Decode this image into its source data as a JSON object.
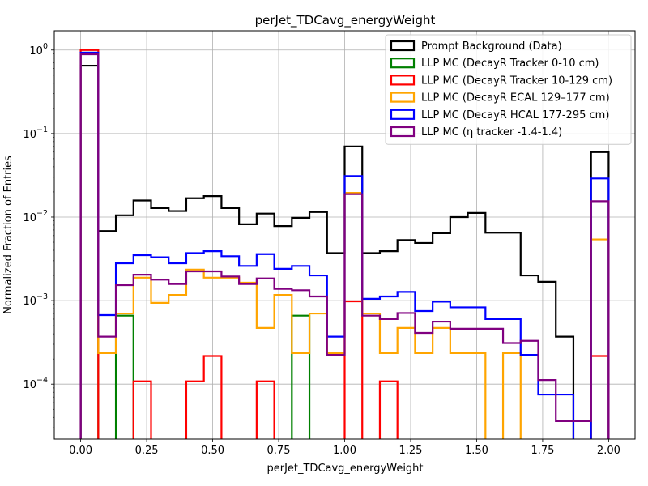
{
  "chart_data": {
    "type": "histogram",
    "title": "perJet_TDCavg_energyWeight",
    "xlabel": "perJet_TDCavg_energyWeight",
    "ylabel": "Normalized Fraction of Entries",
    "xlim": [
      -0.1,
      2.1
    ],
    "ylim": [
      2.2e-05,
      1.7
    ],
    "yscale": "log",
    "grid": true,
    "legend_position": "top-right",
    "x_ticks": [
      0.0,
      0.25,
      0.5,
      0.75,
      1.0,
      1.25,
      1.5,
      1.75,
      2.0
    ],
    "x_tick_labels": [
      "0.00",
      "0.25",
      "0.50",
      "0.75",
      "1.00",
      "1.25",
      "1.50",
      "1.75",
      "2.00"
    ],
    "y_ticks": [
      0.0001,
      0.001,
      0.01,
      0.1,
      1
    ],
    "y_tick_labels": [
      {
        "base": "10",
        "exp": "−4"
      },
      {
        "base": "10",
        "exp": "−3"
      },
      {
        "base": "10",
        "exp": "−2"
      },
      {
        "base": "10",
        "exp": "−1"
      },
      {
        "base": "10",
        "exp": "0"
      }
    ],
    "bins": {
      "start": 0.0,
      "end": 2.0,
      "count": 30
    },
    "series": [
      {
        "name": "Prompt Background (Data)",
        "color": "#000000",
        "values": [
          0.65,
          0.0068,
          0.0105,
          0.0158,
          0.0128,
          0.0118,
          0.0168,
          0.0178,
          0.0128,
          0.0082,
          0.011,
          0.0078,
          0.0098,
          0.0115,
          0.0037,
          0.07,
          0.0037,
          0.0039,
          0.0053,
          0.0049,
          0.0064,
          0.01,
          0.0112,
          0.0065,
          0.0065,
          0.002,
          0.00168,
          0.00037,
          0,
          0.06
        ]
      },
      {
        "name": "LLP MC (DecayR Tracker 0-10 cm)",
        "color": "#008000",
        "values": [
          0.93,
          0,
          0.00066,
          0,
          0,
          0,
          0,
          0,
          0,
          0,
          0,
          0,
          0.00066,
          0,
          0,
          0,
          0,
          0,
          0,
          0,
          0,
          0,
          0,
          0,
          0,
          0,
          0,
          0,
          0,
          0
        ]
      },
      {
        "name": "LLP MC (DecayR Tracker 10-129 cm)",
        "color": "#ff0000",
        "values": [
          1.0,
          0,
          0,
          0.000108,
          0,
          0,
          0.000108,
          0.000217,
          0,
          0,
          0.000108,
          0,
          0,
          0,
          0,
          0.00098,
          0,
          0.000108,
          0,
          0,
          0,
          0,
          0,
          0,
          0,
          0,
          0,
          0,
          0,
          0.000217
        ]
      },
      {
        "name": "LLP MC (DecayR ECAL 129–177 cm)",
        "color": "#ffa500",
        "values": [
          0.92,
          0.000235,
          0.0007,
          0.00188,
          0.00094,
          0.00117,
          0.00235,
          0.00188,
          0.00188,
          0.00164,
          0.00047,
          0.00117,
          0.000235,
          0.0007,
          0.000235,
          0.0195,
          0.0007,
          0.000235,
          0.00047,
          0.000235,
          0.00047,
          0.000235,
          0.000235,
          0,
          0.000235,
          0,
          0,
          0,
          0,
          0.0054
        ]
      },
      {
        "name": "LLP MC (DecayR HCAL 177-295 cm)",
        "color": "#0000ff",
        "values": [
          0.93,
          0.00067,
          0.0028,
          0.0035,
          0.0033,
          0.0028,
          0.0037,
          0.0039,
          0.0034,
          0.0026,
          0.0036,
          0.0024,
          0.0026,
          0.002,
          0.00037,
          0.031,
          0.00105,
          0.00112,
          0.00127,
          0.00075,
          0.00097,
          0.00083,
          0.00083,
          0.0006,
          0.0006,
          0.000224,
          7.5e-05,
          7.5e-05,
          0,
          0.029
        ]
      },
      {
        "name": "LLP MC (η tracker -1.4-1.4)",
        "color": "#800080",
        "values": [
          0.89,
          0.00037,
          0.00153,
          0.00204,
          0.00178,
          0.00158,
          0.00224,
          0.00224,
          0.00194,
          0.00158,
          0.00184,
          0.00138,
          0.00133,
          0.00112,
          0.000224,
          0.0188,
          0.00066,
          0.0006,
          0.00071,
          0.00041,
          0.00056,
          0.00046,
          0.00046,
          0.00046,
          0.00031,
          0.00033,
          0.000112,
          3.6e-05,
          3.6e-05,
          0.0155
        ]
      }
    ]
  }
}
